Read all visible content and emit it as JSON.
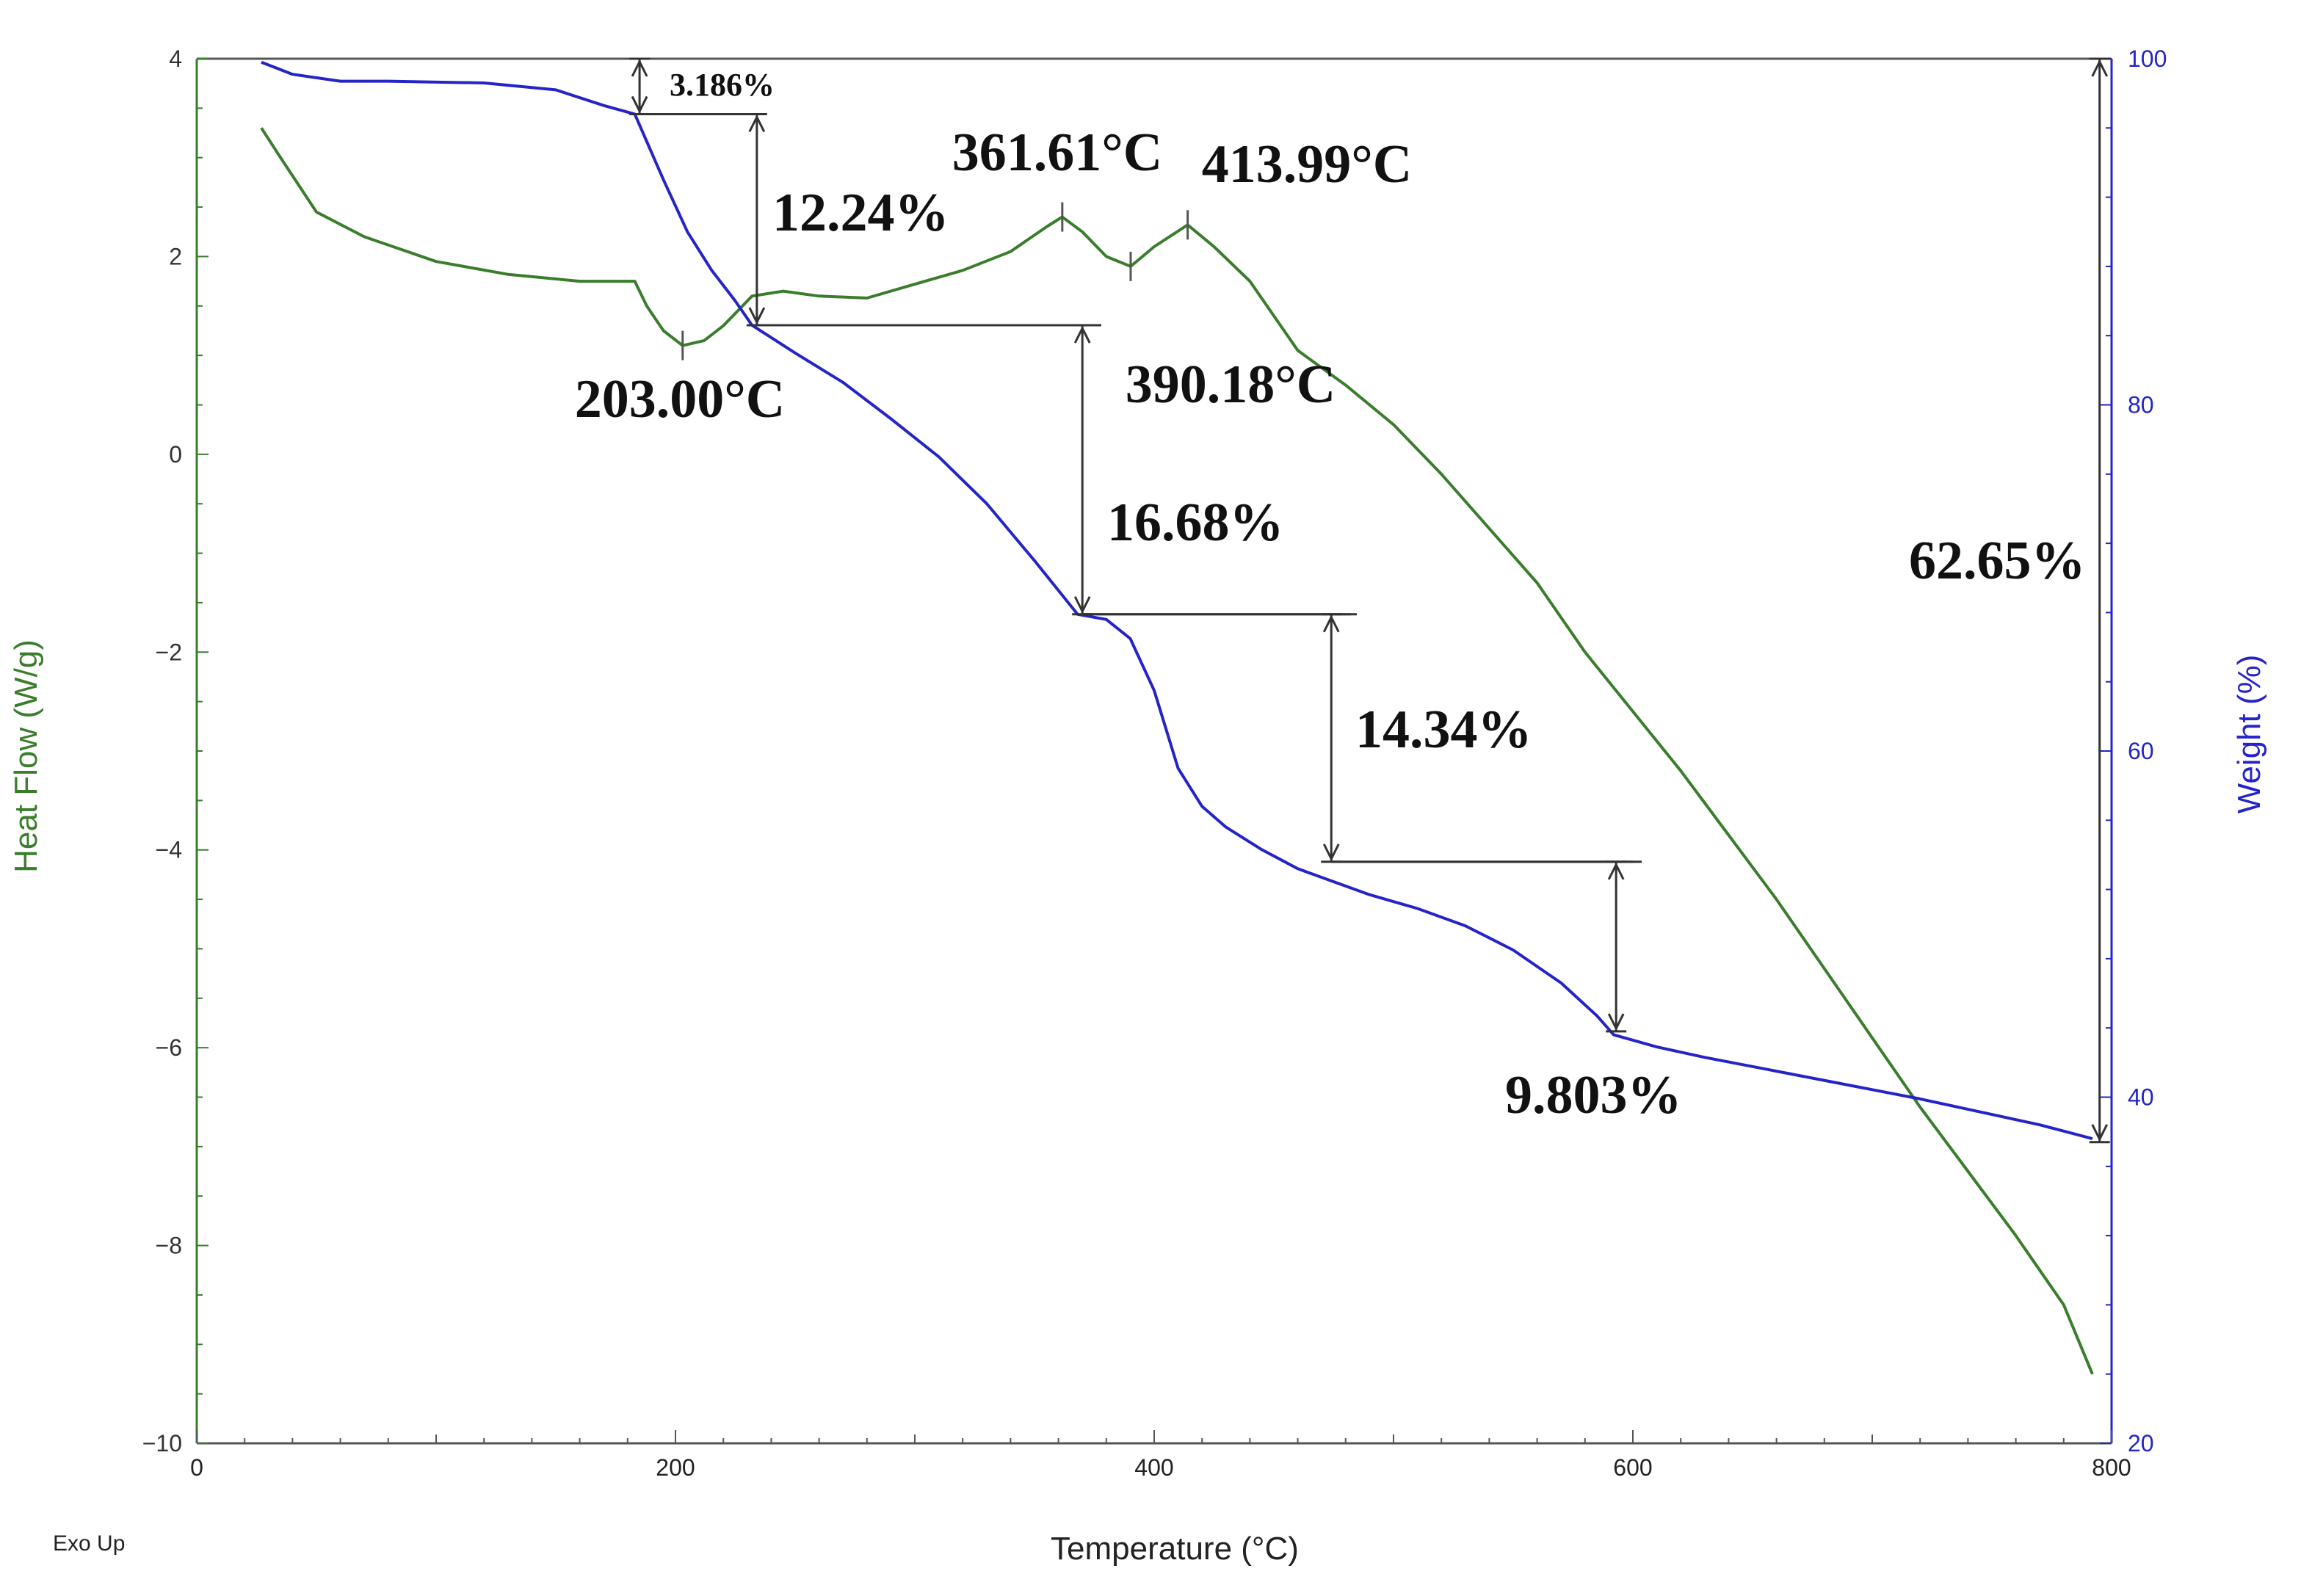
{
  "chart_data": {
    "type": "line",
    "title": "",
    "xlabel": "Temperature (°C)",
    "ylabel_left": "Heat Flow (W/g)",
    "ylabel_right": "Weight (%)",
    "exo_label": "Exo Up",
    "xlim": [
      0,
      800
    ],
    "ylim_left": [
      -10,
      4
    ],
    "ylim_right": [
      20,
      100
    ],
    "x_ticks": [
      0,
      200,
      400,
      600,
      800
    ],
    "y_left_ticks": [
      4,
      2,
      0,
      -2,
      -4,
      -6,
      -8,
      -10
    ],
    "y_left_tick_labels": [
      "4",
      "2",
      "0",
      "−2",
      "−4",
      "−6",
      "−8",
      "−10"
    ],
    "y_right_ticks": [
      100,
      80,
      60,
      40,
      20
    ],
    "colors": {
      "heat_flow": "#3a7d2c",
      "weight": "#2424c8",
      "annotation": "#333333"
    },
    "series": [
      {
        "name": "Heat Flow",
        "axis": "left",
        "x": [
          27,
          35,
          50,
          70,
          100,
          130,
          160,
          183,
          188,
          195,
          203,
          212,
          220,
          232,
          245,
          260,
          280,
          300,
          320,
          340,
          355,
          361.61,
          370,
          380,
          390.18,
          400,
          413.99,
          425,
          440,
          460,
          480,
          500,
          520,
          540,
          560,
          580,
          600,
          620,
          640,
          660,
          680,
          700,
          720,
          740,
          760,
          780,
          792
        ],
        "y": [
          3.3,
          3.0,
          2.45,
          2.2,
          1.95,
          1.82,
          1.75,
          1.75,
          1.5,
          1.25,
          1.1,
          1.15,
          1.3,
          1.6,
          1.65,
          1.6,
          1.58,
          1.72,
          1.86,
          2.05,
          2.3,
          2.4,
          2.25,
          2.0,
          1.9,
          2.1,
          2.32,
          2.1,
          1.75,
          1.05,
          0.7,
          0.3,
          -0.2,
          -0.75,
          -1.3,
          -2.0,
          -2.6,
          -3.2,
          -3.85,
          -4.5,
          -5.2,
          -5.9,
          -6.6,
          -7.25,
          -7.9,
          -8.6,
          -9.3
        ]
      },
      {
        "name": "Weight",
        "axis": "right",
        "x": [
          27,
          40,
          60,
          80,
          120,
          150,
          170,
          183,
          195,
          205,
          215,
          225,
          232,
          250,
          270,
          290,
          310,
          330,
          350,
          368,
          380,
          390,
          400,
          410,
          420,
          430,
          445,
          460,
          472,
          490,
          510,
          530,
          550,
          570,
          585,
          592,
          610,
          630,
          660,
          690,
          720,
          750,
          770,
          792
        ],
        "y": [
          99.8,
          99.1,
          98.7,
          98.7,
          98.6,
          98.2,
          97.3,
          96.8,
          93.0,
          90.0,
          87.8,
          86.0,
          84.6,
          83.0,
          81.3,
          79.2,
          77.0,
          74.3,
          71.0,
          67.9,
          67.6,
          66.5,
          63.5,
          59.0,
          56.8,
          55.6,
          54.3,
          53.2,
          52.6,
          51.7,
          50.9,
          49.9,
          48.5,
          46.6,
          44.7,
          43.6,
          42.9,
          42.3,
          41.5,
          40.7,
          39.9,
          39.0,
          38.4,
          37.6
        ]
      }
    ],
    "annotations": {
      "peaks": [
        {
          "label": "361.61°C",
          "x": 361.61
        },
        {
          "label": "413.99°C",
          "x": 413.99
        },
        {
          "label": "203.00°C",
          "x": 203.0
        },
        {
          "label": "390.18°C",
          "x": 390.18
        }
      ],
      "weight_steps": [
        {
          "label": "3.186%",
          "x": 185,
          "from": 100,
          "to": 96.8
        },
        {
          "label": "12.24%",
          "x": 234,
          "from": 96.8,
          "to": 84.6
        },
        {
          "label": "16.68%",
          "x": 370,
          "from": 84.6,
          "to": 67.9
        },
        {
          "label": "14.34%",
          "x": 474,
          "from": 67.9,
          "to": 53.6
        },
        {
          "label": "9.803%",
          "x": 593,
          "from": 53.6,
          "to": 43.8
        },
        {
          "label": "62.65%",
          "x": 795,
          "from": 100,
          "to": 37.4
        }
      ]
    }
  }
}
